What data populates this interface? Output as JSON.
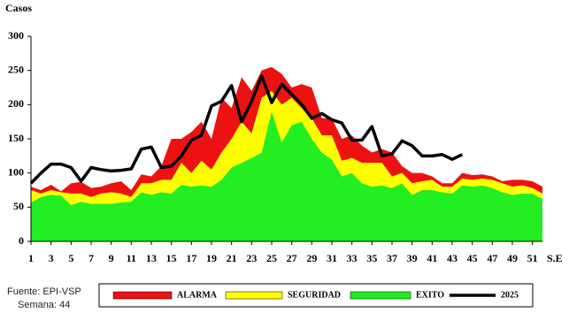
{
  "chart_data": {
    "type": "stacked_area_line",
    "y_label": "Casos",
    "x_label": "S.E",
    "source": "Fuente: EPI-VSP",
    "note": "Semana: 44",
    "x": [
      1,
      2,
      3,
      4,
      5,
      6,
      7,
      8,
      9,
      10,
      11,
      12,
      13,
      14,
      15,
      16,
      17,
      18,
      19,
      20,
      21,
      22,
      23,
      24,
      25,
      26,
      27,
      28,
      29,
      30,
      31,
      32,
      33,
      34,
      35,
      36,
      37,
      38,
      39,
      40,
      41,
      42,
      43,
      44,
      45,
      46,
      47,
      48,
      49,
      50,
      51,
      52
    ],
    "xlim": [
      1,
      52
    ],
    "xticks": [
      1,
      3,
      5,
      7,
      9,
      11,
      13,
      15,
      17,
      19,
      21,
      23,
      25,
      27,
      29,
      31,
      33,
      35,
      37,
      39,
      41,
      43,
      45,
      47,
      49,
      51
    ],
    "ylim": [
      0,
      300
    ],
    "yticks": [
      0,
      50,
      100,
      150,
      200,
      250,
      300
    ],
    "grid": false,
    "legend": "bottom",
    "series": [
      {
        "name": "ALARMA",
        "color": "#ee1111",
        "kind": "area",
        "values": [
          5,
          5,
          8,
          1,
          15,
          17,
          13,
          10,
          13,
          18,
          10,
          13,
          10,
          20,
          60,
          35,
          60,
          57,
          45,
          80,
          45,
          65,
          62,
          40,
          35,
          45,
          15,
          35,
          45,
          25,
          25,
          32,
          33,
          25,
          15,
          20,
          35,
          10,
          15,
          12,
          5,
          5,
          5,
          8,
          7,
          6,
          5,
          3,
          10,
          8,
          10,
          10
        ]
      },
      {
        "name": "SEGURIDAD",
        "color": "#ffff00",
        "kind": "area",
        "values": [
          18,
          5,
          7,
          5,
          17,
          12,
          10,
          15,
          17,
          13,
          7,
          13,
          17,
          18,
          20,
          32,
          20,
          36,
          25,
          40,
          42,
          60,
          36,
          80,
          30,
          55,
          40,
          20,
          30,
          25,
          35,
          23,
          22,
          30,
          35,
          33,
          17,
          15,
          17,
          13,
          15,
          8,
          10,
          10,
          10,
          10,
          12,
          13,
          12,
          12,
          8,
          8
        ]
      },
      {
        "name": "EXITO",
        "color": "#22ee22",
        "kind": "area",
        "values": [
          57,
          65,
          68,
          67,
          53,
          58,
          55,
          55,
          55,
          57,
          58,
          72,
          68,
          72,
          70,
          83,
          80,
          82,
          80,
          90,
          108,
          115,
          122,
          130,
          190,
          145,
          170,
          175,
          150,
          130,
          120,
          95,
          100,
          85,
          80,
          82,
          78,
          85,
          68,
          75,
          75,
          72,
          70,
          82,
          80,
          82,
          78,
          72,
          68,
          70,
          70,
          62
        ]
      },
      {
        "name": "2025",
        "color": "#000000",
        "kind": "line",
        "values": [
          85,
          100,
          113,
          113,
          108,
          88,
          108,
          105,
          103,
          104,
          106,
          135,
          138,
          108,
          110,
          125,
          148,
          155,
          198,
          205,
          228,
          175,
          205,
          242,
          203,
          230,
          215,
          200,
          180,
          187,
          178,
          173,
          148,
          148,
          168,
          125,
          128,
          147,
          140,
          125,
          125,
          127,
          120,
          127,
          null,
          null,
          null,
          null,
          null,
          null,
          null,
          null
        ]
      }
    ]
  }
}
